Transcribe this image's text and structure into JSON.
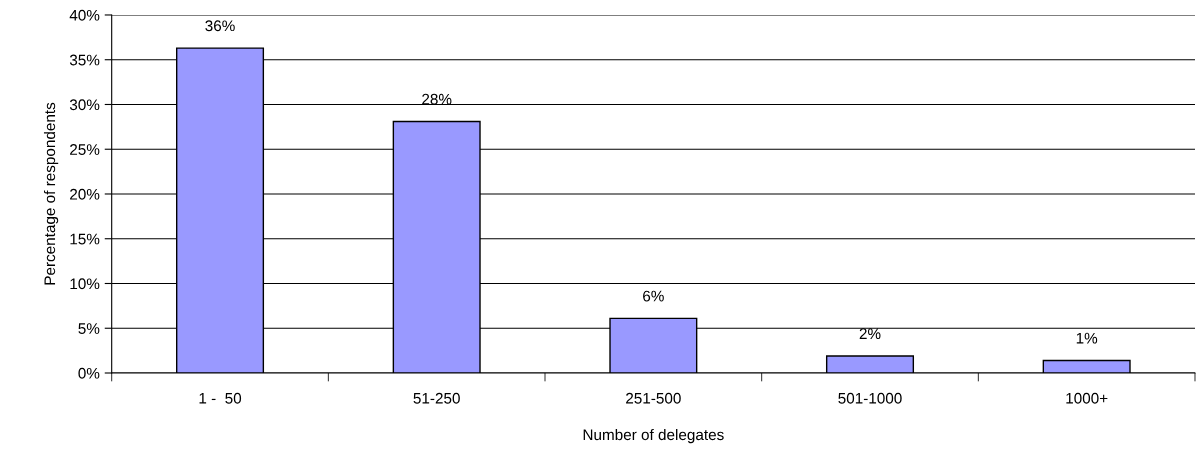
{
  "chart_data": {
    "type": "bar",
    "xlabel": "Number of delegates",
    "ylabel": "Percentage of respondents",
    "categories": [
      "1 -  50",
      "51-250",
      "251-500",
      "501-1000",
      "1000+"
    ],
    "values": [
      36.3,
      28.1,
      6.1,
      1.9,
      1.4
    ],
    "value_labels": [
      "36%",
      "28%",
      "6%",
      "2%",
      "1%"
    ],
    "color": "#9999ff",
    "ylim": [
      0,
      40
    ],
    "yticks": [
      {
        "value": 0,
        "label": "0%"
      },
      {
        "value": 5,
        "label": "5%"
      },
      {
        "value": 10,
        "label": "10%"
      },
      {
        "value": 15,
        "label": "15%"
      },
      {
        "value": 20,
        "label": "20%"
      },
      {
        "value": 25,
        "label": "25%"
      },
      {
        "value": 30,
        "label": "30%"
      },
      {
        "value": 35,
        "label": "35%"
      },
      {
        "value": 40,
        "label": "40%"
      }
    ],
    "grid": "y"
  }
}
